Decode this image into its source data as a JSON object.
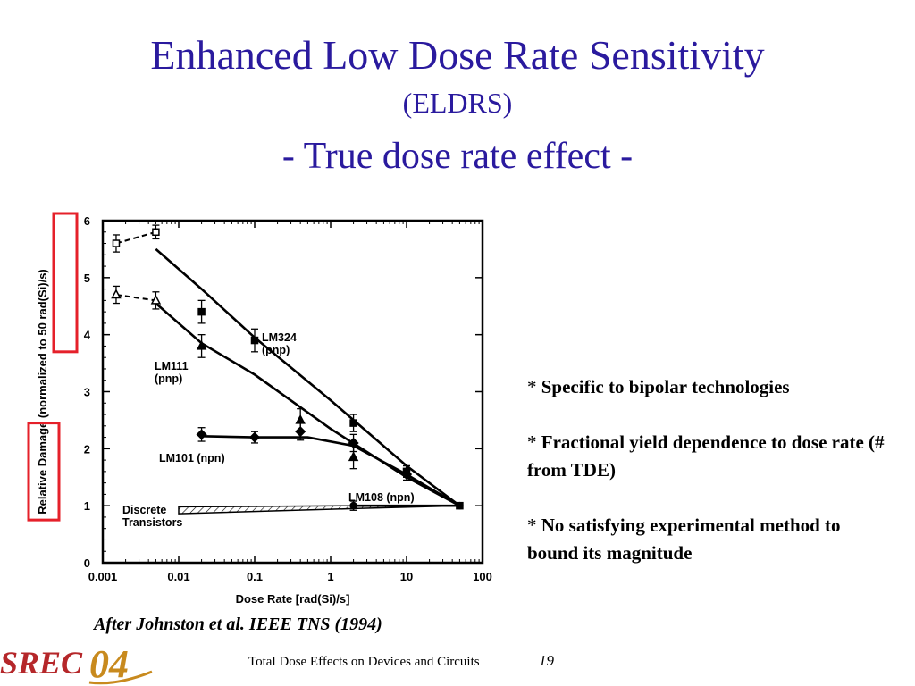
{
  "slide": {
    "title": "Enhanced Low Dose Rate Sensitivity",
    "subtitle": "(ELDRS)",
    "tagline": "- True dose rate effect -",
    "bullets": [
      {
        "star": "*",
        "text": "Specific to bipolar technologies"
      },
      {
        "star": "*",
        "text": "Fractional yield dependence to dose rate (# from TDE)"
      },
      {
        "star": "*",
        "text": "No satisfying experimental method to bound its magnitude"
      }
    ],
    "citation": "After Johnston et al. IEEE TNS (1994)",
    "footer": "Total Dose Effects on Devices and Circuits",
    "page_number": "19",
    "logo": {
      "text_left": "SREC",
      "text_right": "04",
      "color_left": "#b5272a",
      "color_right": "#c88a1e"
    }
  },
  "colors": {
    "title": "#2a1a9e",
    "highlight": "#e5202a"
  },
  "chart_data": {
    "type": "scatter",
    "x_scale": "log",
    "xlabel": "Dose Rate [rad(Si)/s]",
    "ylabel": "Relative Damage (normalized to 50 rad(Si)/s)",
    "xlim": [
      0.001,
      100
    ],
    "ylim": [
      0,
      6
    ],
    "x_ticks": [
      "0.001",
      "0.01",
      "0.1",
      "1",
      "10",
      "100"
    ],
    "y_ticks": [
      "0",
      "1",
      "2",
      "3",
      "4",
      "5",
      "6"
    ],
    "highlighted_labels": [
      "4",
      "5",
      "6",
      "Relative Damage"
    ],
    "series": [
      {
        "name": "LM324 (pnp)",
        "marker": "square",
        "points": [
          {
            "x": 0.0015,
            "y": 5.6,
            "err": 0.15,
            "open": true
          },
          {
            "x": 0.005,
            "y": 5.8,
            "err": 0.12,
            "open": true
          },
          {
            "x": 0.02,
            "y": 4.4,
            "err": 0.2
          },
          {
            "x": 0.1,
            "y": 3.9,
            "err": 0.2
          },
          {
            "x": 2,
            "y": 2.45,
            "err": 0.15
          },
          {
            "x": 10,
            "y": 1.6,
            "err": 0.1
          },
          {
            "x": 50,
            "y": 1.0,
            "err": 0
          }
        ],
        "fit": [
          [
            0.005,
            5.5
          ],
          [
            0.02,
            4.8
          ],
          [
            0.1,
            3.95
          ],
          [
            1,
            2.85
          ],
          [
            10,
            1.7
          ],
          [
            50,
            1.0
          ]
        ],
        "low_rate_dashed": [
          [
            0.0015,
            5.6
          ],
          [
            0.005,
            5.8
          ]
        ],
        "label_lines": [
          "LM324",
          "(pnp)"
        ]
      },
      {
        "name": "LM111 (pnp)",
        "marker": "triangle",
        "points": [
          {
            "x": 0.0015,
            "y": 4.7,
            "err": 0.15,
            "open": true
          },
          {
            "x": 0.005,
            "y": 4.6,
            "err": 0.15,
            "open": true
          },
          {
            "x": 0.02,
            "y": 3.8,
            "err": 0.2
          },
          {
            "x": 0.4,
            "y": 2.5,
            "err": 0.2
          },
          {
            "x": 2,
            "y": 1.85,
            "err": 0.2
          },
          {
            "x": 10,
            "y": 1.6,
            "err": 0.1
          }
        ],
        "fit": [
          [
            0.005,
            4.55
          ],
          [
            0.02,
            3.85
          ],
          [
            0.1,
            3.3
          ],
          [
            1,
            2.35
          ],
          [
            10,
            1.5
          ],
          [
            50,
            1.0
          ]
        ],
        "low_rate_dashed": [
          [
            0.0015,
            4.7
          ],
          [
            0.005,
            4.6
          ]
        ],
        "label_lines": [
          "LM111",
          "(pnp)"
        ]
      },
      {
        "name": "LM101 (npn)",
        "marker": "diamond",
        "points": [
          {
            "x": 0.02,
            "y": 2.25,
            "err": 0.12
          },
          {
            "x": 0.1,
            "y": 2.2,
            "err": 0.1
          },
          {
            "x": 0.4,
            "y": 2.3,
            "err": 0.15
          },
          {
            "x": 2,
            "y": 2.1,
            "err": 0.15
          },
          {
            "x": 10,
            "y": 1.55,
            "err": 0.1
          }
        ],
        "fit": [
          [
            0.02,
            2.22
          ],
          [
            0.1,
            2.2
          ],
          [
            0.5,
            2.2
          ],
          [
            2,
            2.05
          ],
          [
            10,
            1.55
          ],
          [
            50,
            1.0
          ]
        ],
        "label_lines": [
          "LM101 (npn)"
        ]
      },
      {
        "name": "LM108 (npn)",
        "marker": "circle",
        "points": [
          {
            "x": 2,
            "y": 1.0,
            "err": 0.08
          },
          {
            "x": 50,
            "y": 1.0,
            "err": 0
          }
        ],
        "fit": [
          [
            2,
            1.0
          ],
          [
            50,
            1.0
          ]
        ],
        "label_lines": [
          "LM108 (npn)"
        ]
      },
      {
        "name": "Discrete Transistors",
        "marker": "band",
        "band_upper": [
          [
            0.01,
            0.98
          ],
          [
            2,
            1.0
          ],
          [
            50,
            1.0
          ]
        ],
        "band_lower": [
          [
            0.01,
            0.86
          ],
          [
            2,
            0.95
          ],
          [
            50,
            1.0
          ]
        ],
        "label_lines": [
          "Discrete",
          "Transistors"
        ]
      }
    ]
  }
}
